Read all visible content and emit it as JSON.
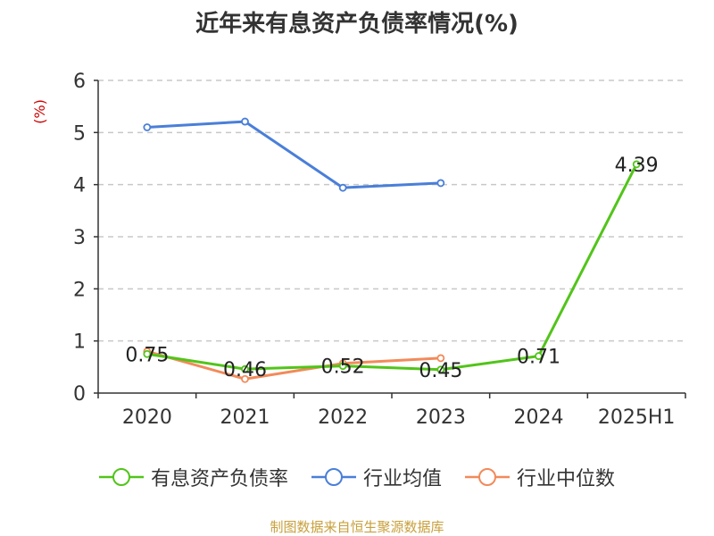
{
  "chart_data": {
    "type": "line",
    "title": "近年来有息资产负债率情况(%)",
    "ylabel": "(%)",
    "categories": [
      "2020",
      "2021",
      "2022",
      "2023",
      "2024",
      "2025H1"
    ],
    "yticks": [
      "0",
      "1",
      "2",
      "3",
      "4",
      "5",
      "6"
    ],
    "ylim": [
      0,
      6
    ],
    "grid": true,
    "legend_position": "bottom",
    "series": [
      {
        "name": "有息资产负债率",
        "color": "#52c41a",
        "values": [
          0.75,
          0.46,
          0.52,
          0.45,
          0.71,
          4.39
        ],
        "labels": [
          "0.75",
          "0.46",
          "0.52",
          "0.45",
          "0.71",
          "4.39"
        ]
      },
      {
        "name": "行业均值",
        "color": "#4a7fd9",
        "values": [
          5.1,
          5.21,
          3.94,
          4.03,
          null,
          null
        ]
      },
      {
        "name": "行业中位数",
        "color": "#f28a5a",
        "values": [
          0.8,
          0.27,
          0.57,
          0.67,
          null,
          null
        ]
      }
    ]
  },
  "footer": "制图数据来自恒生聚源数据库"
}
